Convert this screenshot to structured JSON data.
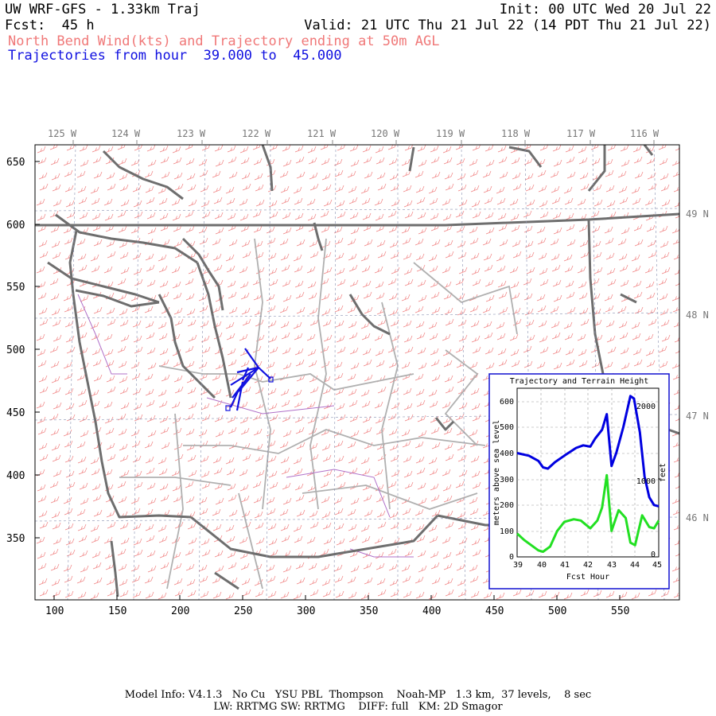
{
  "header": {
    "title": "UW WRF-GFS - 1.33km Traj",
    "init": "Init: 00 UTC Wed 20 Jul 22",
    "fcst": "Fcst:  45 h",
    "valid": "Valid: 21 UTC Thu 21 Jul 22 (14 PDT Thu 21 Jul 22)",
    "subtitle": "North Bend Wind(kts) and Trajectory ending at 50m AGL",
    "traj_range": "Trajectories from hour  39.000 to  45.000"
  },
  "map": {
    "x_ticks": [
      "100",
      "150",
      "200",
      "250",
      "300",
      "350",
      "400",
      "450",
      "500",
      "550"
    ],
    "y_ticks": [
      "650",
      "600",
      "550",
      "500",
      "450",
      "400",
      "350"
    ],
    "lon_labels": [
      "125 W",
      "124 W",
      "123 W",
      "122 W",
      "121 W",
      "120 W",
      "119 W",
      "118 W",
      "117 W",
      "116 W"
    ],
    "lat_labels": [
      "49 N",
      "48 N",
      "47 N",
      "46 N"
    ]
  },
  "inset": {
    "title": "Trajectory and Terrain Height",
    "ylabel_left": "meters above sea level",
    "ylabel_right": "feet",
    "xlabel": "Fcst Hour",
    "x_ticks": [
      "39",
      "40",
      "41",
      "42",
      "43",
      "44",
      "45"
    ],
    "y_ticks_left": [
      "0",
      "100",
      "200",
      "300",
      "400",
      "500",
      "600"
    ],
    "y_ticks_right": [
      "0",
      "1000",
      "2000"
    ]
  },
  "chart_data": {
    "type": "line",
    "title": "Trajectory and Terrain Height",
    "xlabel": "Fcst Hour",
    "ylabel": "meters above sea level",
    "xlim": [
      39,
      45
    ],
    "ylim": [
      0,
      650
    ],
    "series": [
      {
        "color": "#0000e0",
        "x": [
          39.0,
          39.5,
          39.9,
          40.1,
          40.3,
          40.6,
          41.0,
          41.5,
          41.8,
          42.1,
          42.3,
          42.6,
          42.8,
          43.0,
          43.2,
          43.5,
          43.8,
          43.95,
          44.2,
          44.4,
          44.6,
          44.8,
          45.0
        ],
        "values": [
          400,
          390,
          370,
          345,
          340,
          365,
          390,
          420,
          430,
          425,
          455,
          490,
          550,
          350,
          400,
          500,
          620,
          610,
          480,
          310,
          230,
          200,
          195
        ]
      },
      {
        "color": "#22e022",
        "x": [
          39.0,
          39.3,
          39.6,
          39.9,
          40.1,
          40.4,
          40.7,
          41.0,
          41.4,
          41.7,
          41.9,
          42.1,
          42.4,
          42.6,
          42.8,
          43.0,
          43.3,
          43.6,
          43.8,
          44.0,
          44.3,
          44.6,
          44.8,
          45.0
        ],
        "values": [
          90,
          65,
          45,
          25,
          20,
          40,
          100,
          135,
          145,
          140,
          125,
          110,
          140,
          190,
          315,
          100,
          180,
          150,
          55,
          45,
          160,
          115,
          110,
          140
        ]
      }
    ]
  },
  "footer": {
    "line1": "Model Info: V4.1.3   No Cu   YSU PBL  Thompson    Noah-MP   1.3 km,  37 levels,    8 sec",
    "line2": "LW: RRTMG SW: RRTMG    DIFF: full   KM: 2D Smagor"
  }
}
